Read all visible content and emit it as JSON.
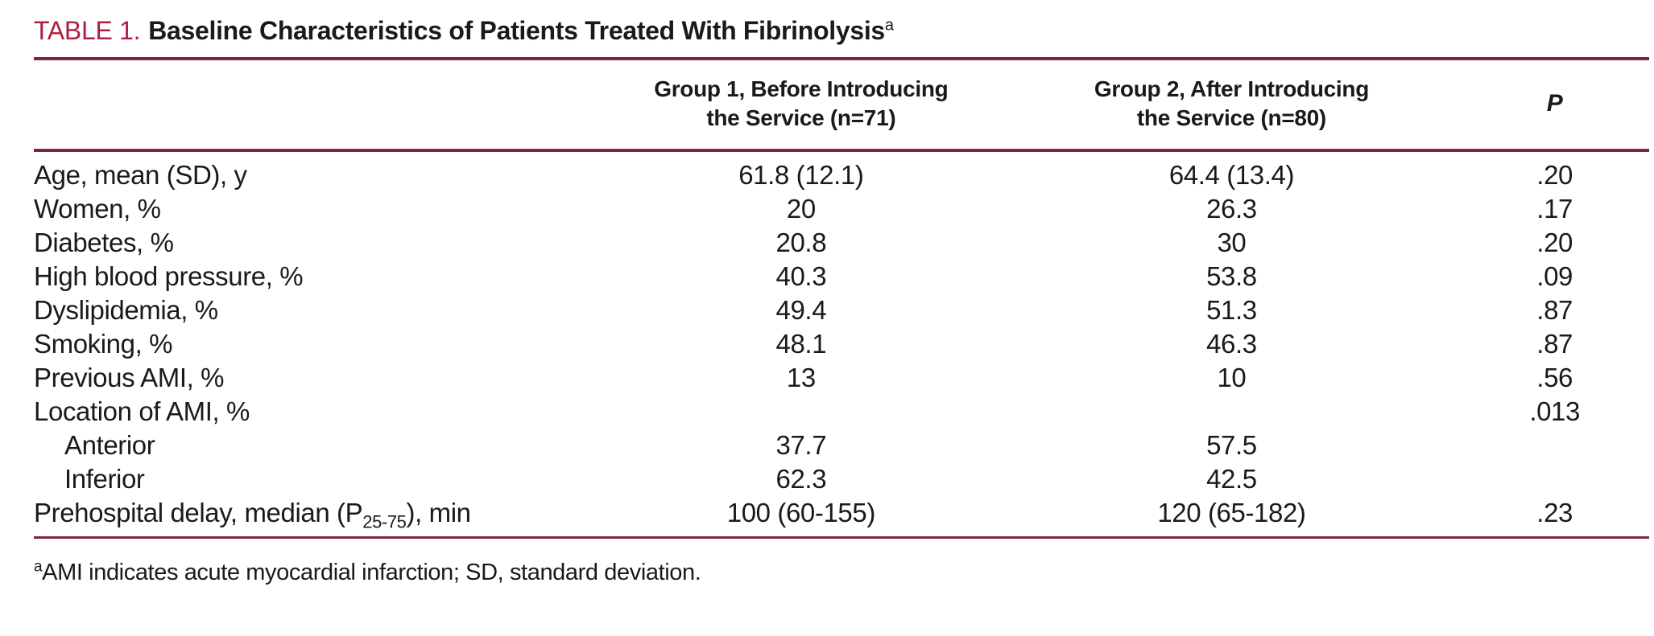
{
  "colors": {
    "title_label": "#b11e42",
    "rule": "#7e2248",
    "text": "#1a1a1a",
    "background": "#ffffff"
  },
  "title": {
    "label": "TABLE 1.",
    "text": "Baseline Characteristics of Patients Treated With Fibrinolysis",
    "superscript": "a"
  },
  "table": {
    "columns": [
      {
        "id": "label",
        "header": ""
      },
      {
        "id": "group1",
        "header_line1": "Group 1, Before Introducing",
        "header_line2": "the Service (n=71)"
      },
      {
        "id": "group2",
        "header_line1": "Group 2, After Introducing",
        "header_line2": "the Service (n=80)"
      },
      {
        "id": "p",
        "header": "P"
      }
    ],
    "rows": [
      {
        "label": "Age, mean (SD), y",
        "indent": false,
        "group1": "61.8 (12.1)",
        "group2": "64.4 (13.4)",
        "p": ".20"
      },
      {
        "label": "Women, %",
        "indent": false,
        "group1": "20",
        "group2": "26.3",
        "p": ".17"
      },
      {
        "label": "Diabetes, %",
        "indent": false,
        "group1": "20.8",
        "group2": "30",
        "p": ".20"
      },
      {
        "label": "High blood pressure, %",
        "indent": false,
        "group1": "40.3",
        "group2": "53.8",
        "p": ".09"
      },
      {
        "label": "Dyslipidemia, %",
        "indent": false,
        "group1": "49.4",
        "group2": "51.3",
        "p": ".87"
      },
      {
        "label": "Smoking, %",
        "indent": false,
        "group1": "48.1",
        "group2": "46.3",
        "p": ".87"
      },
      {
        "label": "Previous AMI, %",
        "indent": false,
        "group1": "13",
        "group2": "10",
        "p": ".56"
      },
      {
        "label": "Location of AMI, %",
        "indent": false,
        "group1": "",
        "group2": "",
        "p": ".013"
      },
      {
        "label": "Anterior",
        "indent": true,
        "group1": "37.7",
        "group2": "57.5",
        "p": ""
      },
      {
        "label": "Inferior",
        "indent": true,
        "group1": "62.3",
        "group2": "42.5",
        "p": ""
      },
      {
        "label_pre": "Prehospital delay, median (P",
        "label_sub": "25-75",
        "label_post": "), min",
        "indent": false,
        "group1": "100 (60-155)",
        "group2": "120 (65-182)",
        "p": ".23"
      }
    ]
  },
  "footnote": {
    "superscript": "a",
    "text": "AMI indicates acute myocardial infarction; SD, standard deviation."
  }
}
